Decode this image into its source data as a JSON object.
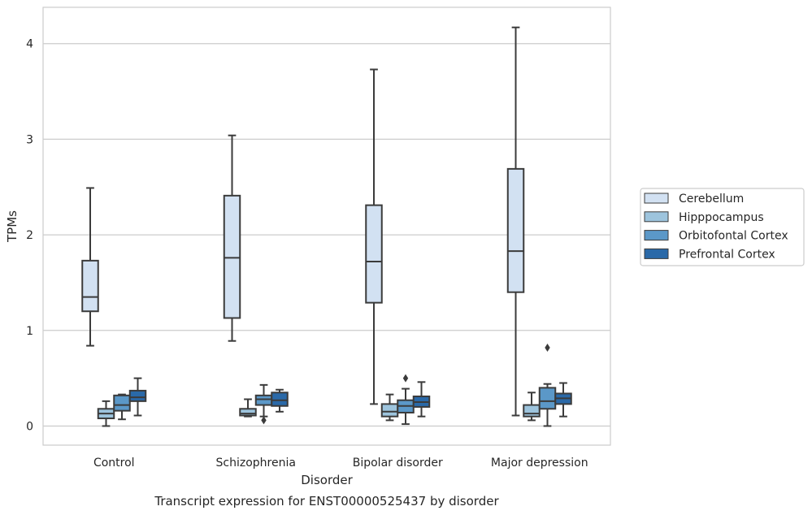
{
  "chart_data": {
    "type": "boxplot",
    "title": "",
    "caption": "Transcript expression for ENST00000525437 by disorder",
    "xlabel": "Disorder",
    "ylabel": "TPMs",
    "ylim": [
      -0.2,
      4.38
    ],
    "yticks": [
      0,
      1,
      2,
      3,
      4
    ],
    "grid": "horizontal",
    "legend_position": "right",
    "categories": [
      "Control",
      "Schizophrenia",
      "Bipolar disorder",
      "Major depression"
    ],
    "series": [
      {
        "name": "Cerebellum",
        "color": "#d2e1f2",
        "boxes": [
          {
            "whislo": 0.84,
            "q1": 1.2,
            "med": 1.35,
            "q3": 1.73,
            "whishi": 2.49,
            "fliers": []
          },
          {
            "whislo": 0.89,
            "q1": 1.13,
            "med": 1.76,
            "q3": 2.41,
            "whishi": 3.04,
            "fliers": []
          },
          {
            "whislo": 0.23,
            "q1": 1.29,
            "med": 1.72,
            "q3": 2.31,
            "whishi": 3.73,
            "fliers": []
          },
          {
            "whislo": 0.11,
            "q1": 1.4,
            "med": 1.83,
            "q3": 2.69,
            "whishi": 4.17,
            "fliers": []
          }
        ]
      },
      {
        "name": "Hipppocampus",
        "color": "#9dc4dd",
        "boxes": [
          {
            "whislo": 0.0,
            "q1": 0.08,
            "med": 0.13,
            "q3": 0.18,
            "whishi": 0.26,
            "fliers": []
          },
          {
            "whislo": 0.1,
            "q1": 0.11,
            "med": 0.13,
            "q3": 0.18,
            "whishi": 0.28,
            "fliers": []
          },
          {
            "whislo": 0.06,
            "q1": 0.1,
            "med": 0.15,
            "q3": 0.23,
            "whishi": 0.33,
            "fliers": []
          },
          {
            "whislo": 0.06,
            "q1": 0.1,
            "med": 0.13,
            "q3": 0.22,
            "whishi": 0.35,
            "fliers": []
          }
        ]
      },
      {
        "name": "Orbitofontal Cortex",
        "color": "#5b98c8",
        "boxes": [
          {
            "whislo": 0.07,
            "q1": 0.16,
            "med": 0.22,
            "q3": 0.32,
            "whishi": 0.33,
            "fliers": []
          },
          {
            "whislo": 0.1,
            "q1": 0.22,
            "med": 0.28,
            "q3": 0.32,
            "whishi": 0.43,
            "fliers": [
              0.06
            ]
          },
          {
            "whislo": 0.02,
            "q1": 0.14,
            "med": 0.21,
            "q3": 0.27,
            "whishi": 0.39,
            "fliers": [
              0.5
            ]
          },
          {
            "whislo": 0.0,
            "q1": 0.18,
            "med": 0.26,
            "q3": 0.4,
            "whishi": 0.44,
            "fliers": [
              0.82
            ]
          }
        ]
      },
      {
        "name": "Prefrontal Cortex",
        "color": "#2a69a8",
        "boxes": [
          {
            "whislo": 0.11,
            "q1": 0.26,
            "med": 0.3,
            "q3": 0.37,
            "whishi": 0.5,
            "fliers": []
          },
          {
            "whislo": 0.15,
            "q1": 0.21,
            "med": 0.27,
            "q3": 0.35,
            "whishi": 0.38,
            "fliers": []
          },
          {
            "whislo": 0.1,
            "q1": 0.2,
            "med": 0.25,
            "q3": 0.31,
            "whishi": 0.46,
            "fliers": []
          },
          {
            "whislo": 0.1,
            "q1": 0.23,
            "med": 0.29,
            "q3": 0.34,
            "whishi": 0.45,
            "fliers": []
          }
        ]
      }
    ]
  }
}
